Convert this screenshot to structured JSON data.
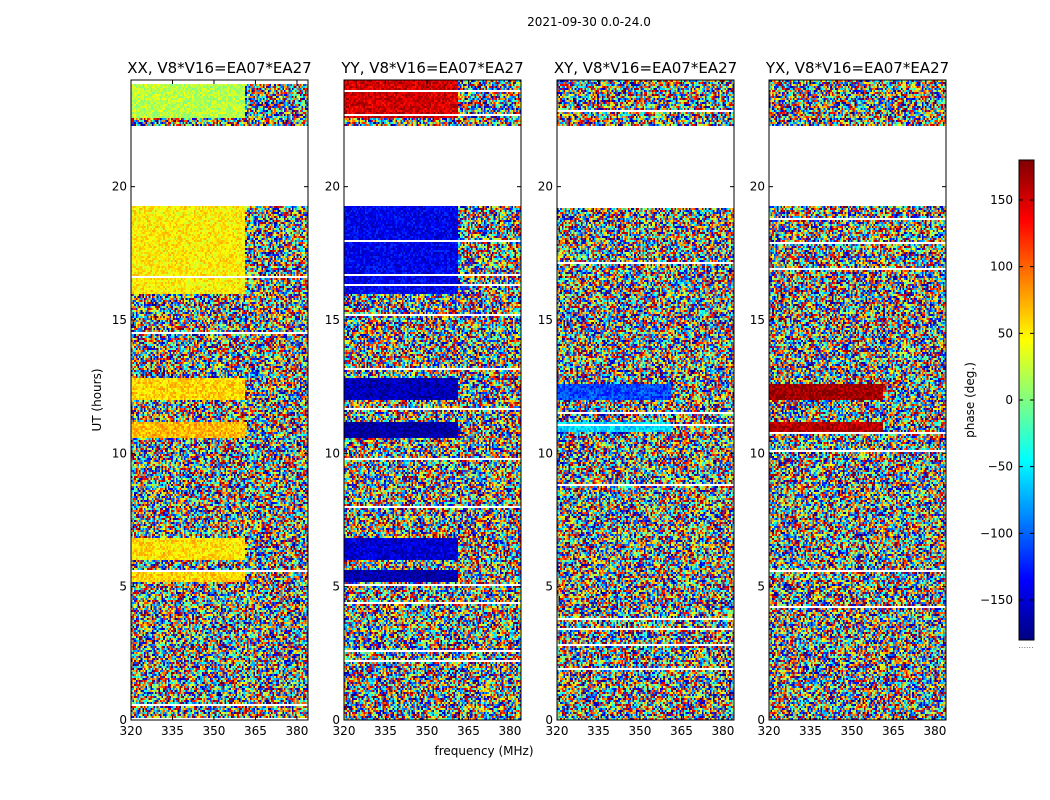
{
  "chart_data": {
    "type": "heatmap",
    "suptitle": "2021-09-30 0.0-24.0",
    "xlabel": "frequency (MHz)",
    "ylabel": "UT (hours)",
    "colorbar": {
      "label": "phase (deg.)",
      "range": [
        -180,
        180
      ],
      "ticks": [
        150,
        100,
        50,
        0,
        -50,
        -100,
        -150
      ],
      "tick_labels": [
        "150",
        "100",
        "50",
        "0",
        "−50",
        "−100",
        "−150"
      ],
      "colormap": "jet",
      "footer_text": "......"
    },
    "x_range": [
      320,
      384
    ],
    "x_ticks": [
      320,
      335,
      350,
      365,
      380
    ],
    "x_tick_labels": [
      "320",
      "335",
      "350",
      "365",
      "380"
    ],
    "y_range": [
      0,
      24
    ],
    "y_ticks": [
      0,
      5,
      10,
      15,
      20
    ],
    "y_tick_labels": [
      "0",
      "5",
      "10",
      "15",
      "20"
    ],
    "blank_interval_hours": [
      19.3,
      22.3
    ],
    "panels": [
      {
        "title": "XX, V8*V16=EA07*EA27",
        "pol": "XX",
        "coherent_bands": [
          [
            16.0,
            19.3,
            50
          ],
          [
            12.0,
            12.8,
            60
          ],
          [
            10.6,
            11.2,
            70
          ],
          [
            6.0,
            6.8,
            55
          ],
          [
            5.2,
            5.6,
            60
          ],
          [
            22.6,
            24.0,
            20
          ]
        ]
      },
      {
        "title": "YY, V8*V16=EA07*EA27",
        "pol": "YY",
        "coherent_bands": [
          [
            16.0,
            19.3,
            -140
          ],
          [
            12.0,
            12.8,
            -160
          ],
          [
            10.6,
            11.2,
            -170
          ],
          [
            6.0,
            6.8,
            -150
          ],
          [
            5.2,
            5.6,
            -165
          ],
          [
            22.6,
            24.0,
            150
          ]
        ]
      },
      {
        "title": "XY, V8*V16=EA07*EA27",
        "pol": "XY",
        "coherent_bands": [
          [
            12.0,
            12.6,
            -110
          ],
          [
            10.8,
            11.2,
            -60
          ]
        ]
      },
      {
        "title": "YX, V8*V16=EA07*EA27",
        "pol": "YX",
        "coherent_bands": [
          [
            12.0,
            12.6,
            170
          ],
          [
            10.8,
            11.2,
            160
          ]
        ]
      }
    ]
  }
}
